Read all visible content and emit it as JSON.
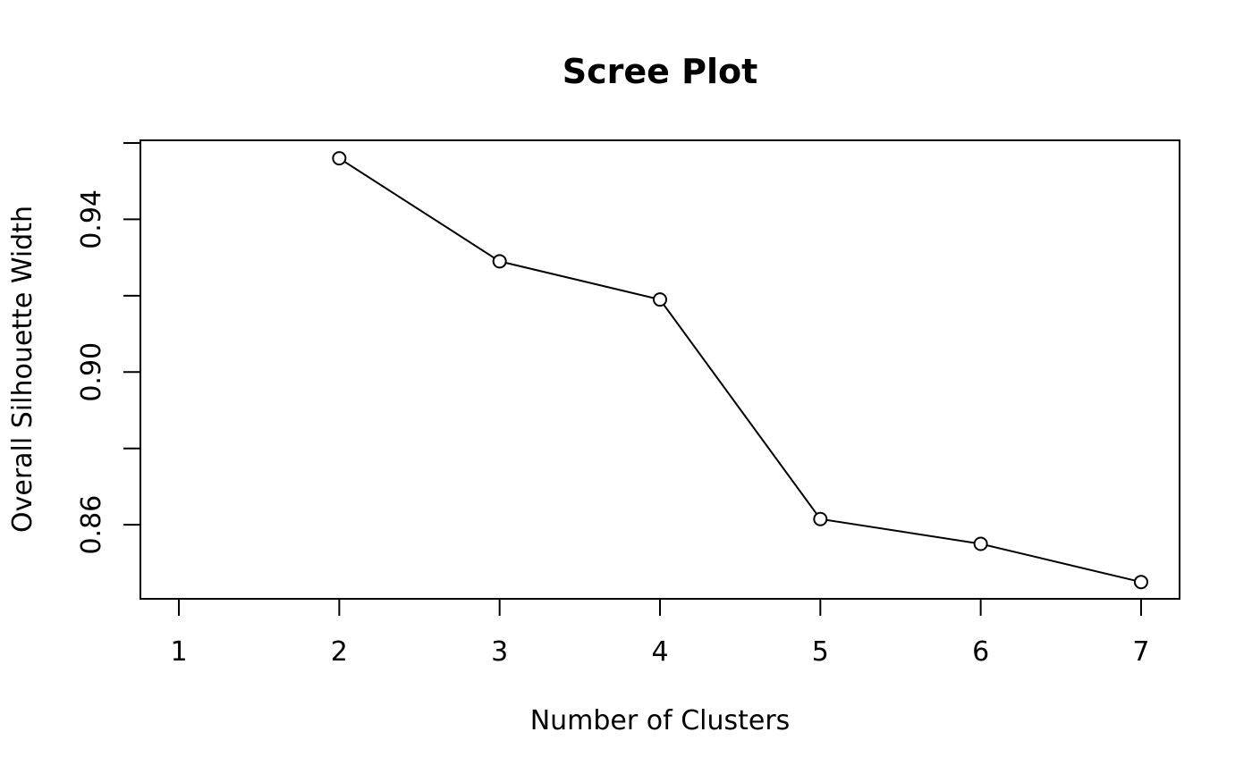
{
  "chart_data": {
    "type": "line",
    "title": "Scree Plot",
    "xlabel": "Number of Clusters",
    "ylabel": "Overall Silhouette Width",
    "x_ticks": [
      1,
      2,
      3,
      4,
      5,
      6,
      7
    ],
    "y_ticks": [
      0.86,
      0.88,
      0.9,
      0.92,
      0.94,
      0.96
    ],
    "y_tick_labels": [
      "0.86",
      "",
      "0.90",
      "",
      "0.94",
      ""
    ],
    "xlim": [
      0.76,
      7.24
    ],
    "ylim": [
      0.8406,
      0.9607
    ],
    "series": [
      {
        "x": [
          2,
          3,
          4,
          5,
          6,
          7
        ],
        "y": [
          0.956,
          0.929,
          0.919,
          0.8615,
          0.855,
          0.845
        ]
      }
    ],
    "marker": "open-circle",
    "grid": false,
    "legend": "none",
    "line_color": "#000000"
  }
}
